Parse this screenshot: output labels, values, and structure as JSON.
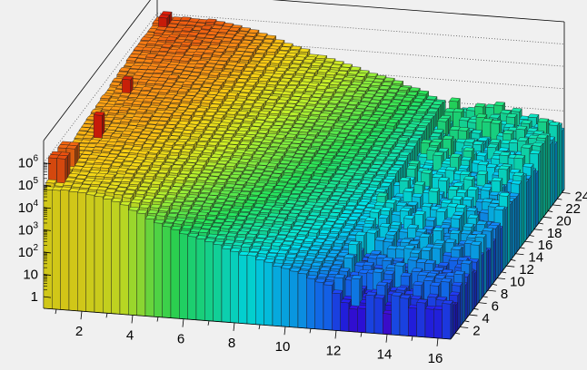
{
  "chart_data": {
    "type": "lego3d",
    "title": "",
    "xlabel": "",
    "ylabel": "",
    "zlabel": "",
    "z_scale": "log",
    "colormap": "rainbow",
    "background": "#f0f0f0",
    "grid": true,
    "xlim": [
      0.5,
      16.5
    ],
    "ylim": [
      0,
      24.5
    ],
    "zlim": [
      0.3,
      10000000
    ],
    "x_ticks": [
      2,
      4,
      6,
      8,
      10,
      12,
      14,
      16
    ],
    "y_ticks": [
      2,
      4,
      6,
      8,
      10,
      12,
      14,
      16,
      18,
      20,
      22,
      24
    ],
    "z_tick_labels": [
      "1",
      "10",
      "10^2",
      "10^3",
      "10^4",
      "10^5",
      "10^6"
    ],
    "z_tick_values": [
      1,
      10,
      100,
      1000,
      10000,
      100000,
      1000000
    ],
    "x_bins": 48,
    "y_bins": 48,
    "surface_profile_log10": {
      "x": [
        0.5,
        1.5,
        2.5,
        3.5,
        4.5,
        5.5,
        6.5,
        7.5,
        8.5,
        9.5,
        10.5,
        11.5,
        12.5,
        13.5,
        14.5,
        15.5,
        16.5
      ],
      "y_low": [
        4.8,
        4.7,
        4.6,
        4.4,
        3.8,
        3.3,
        3.0,
        2.7,
        2.4,
        2.1,
        1.8,
        1.4,
        0.9,
        0.8,
        0.7,
        0.6,
        0.6
      ],
      "y_high": [
        5.8,
        5.9,
        5.9,
        5.8,
        5.6,
        5.2,
        4.8,
        4.5,
        4.2,
        3.9,
        3.6,
        3.2,
        2.9,
        2.8,
        2.7,
        2.6,
        2.6
      ]
    },
    "spikes": [
      {
        "x": 1.0,
        "y": 23.5,
        "z": 1800000
      },
      {
        "x": 1.3,
        "y": 13.5,
        "z": 1500000
      },
      {
        "x": 1.3,
        "y": 7.5,
        "z": 1800000
      },
      {
        "x": 0.9,
        "y": 3.5,
        "z": 700000
      },
      {
        "x": 0.9,
        "y": 1.5,
        "z": 900000
      }
    ]
  }
}
